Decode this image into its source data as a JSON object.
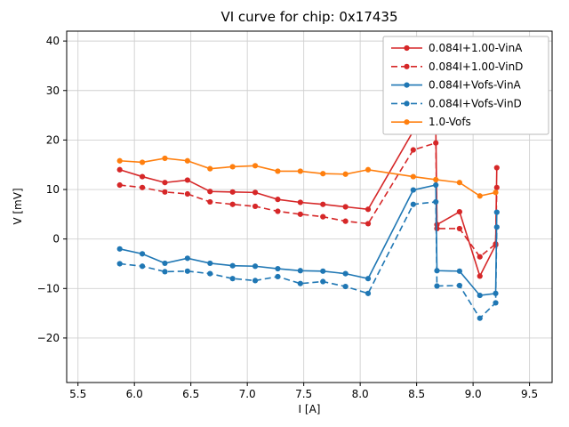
{
  "figure": {
    "title": "VI curve for chip: 0x17435",
    "background_color": "#ffffff",
    "accent_colors": {
      "red": "#d62728",
      "blue": "#1f77b4",
      "orange": "#ff7f0e"
    }
  },
  "chart_data": {
    "type": "line",
    "title": "VI curve for chip: 0x17435",
    "xlabel": "I [A]",
    "ylabel": "V [mV]",
    "xlim": [
      5.4,
      9.7
    ],
    "ylim": [
      -29,
      42
    ],
    "grid": true,
    "legend_position": "upper right",
    "xticks": {
      "values": [
        5.5,
        6.0,
        6.5,
        7.0,
        7.5,
        8.0,
        8.5,
        9.0,
        9.5
      ],
      "labels": [
        "5.5",
        "6.0",
        "6.5",
        "7.0",
        "7.5",
        "8.0",
        "8.5",
        "9.0",
        "9.5"
      ]
    },
    "yticks": {
      "values": [
        -20,
        -10,
        0,
        10,
        20,
        30,
        40
      ],
      "labels": [
        "−20",
        "−10",
        "0",
        "10",
        "20",
        "30",
        "40"
      ]
    },
    "series": [
      {
        "name": "0.084I+1.00-VinA",
        "color": "#d62728",
        "style": "solid",
        "marker": "circle",
        "x": [
          5.87,
          6.07,
          6.27,
          6.47,
          6.67,
          6.87,
          7.07,
          7.27,
          7.47,
          7.67,
          7.87,
          8.07,
          8.47,
          8.67,
          8.68,
          8.88,
          9.06,
          9.2,
          9.21
        ],
        "y": [
          14.0,
          12.6,
          11.4,
          11.9,
          9.6,
          9.5,
          9.4,
          8.0,
          7.4,
          7.0,
          6.5,
          6.0,
          21.8,
          22.3,
          2.9,
          5.5,
          -7.5,
          -1.2,
          14.4
        ]
      },
      {
        "name": "0.084I+1.00-VinD",
        "color": "#d62728",
        "style": "dashed",
        "marker": "circle",
        "x": [
          5.87,
          6.07,
          6.27,
          6.47,
          6.67,
          6.87,
          7.07,
          7.27,
          7.47,
          7.67,
          7.87,
          8.07,
          8.47,
          8.67,
          8.68,
          8.88,
          9.06,
          9.2,
          9.21
        ],
        "y": [
          10.9,
          10.4,
          9.5,
          9.1,
          7.5,
          7.0,
          6.6,
          5.6,
          5.0,
          4.5,
          3.6,
          3.1,
          18.0,
          19.4,
          2.1,
          2.1,
          -3.6,
          -1.0,
          10.4
        ]
      },
      {
        "name": "0.084I+Vofs-VinA",
        "color": "#1f77b4",
        "style": "solid",
        "marker": "circle",
        "x": [
          5.87,
          6.07,
          6.27,
          6.47,
          6.67,
          6.87,
          7.07,
          7.27,
          7.47,
          7.67,
          7.87,
          8.07,
          8.47,
          8.67,
          8.68,
          8.88,
          9.06,
          9.2,
          9.21
        ],
        "y": [
          -2.0,
          -3.0,
          -4.9,
          -3.9,
          -4.9,
          -5.4,
          -5.5,
          -6.0,
          -6.4,
          -6.5,
          -7.0,
          -8.0,
          9.9,
          10.9,
          -6.4,
          -6.5,
          -11.4,
          -11.0,
          5.4
        ]
      },
      {
        "name": "0.084I+Vofs-VinD",
        "color": "#1f77b4",
        "style": "dashed",
        "marker": "circle",
        "x": [
          5.87,
          6.07,
          6.27,
          6.47,
          6.67,
          6.87,
          7.07,
          7.27,
          7.47,
          7.67,
          7.87,
          8.07,
          8.47,
          8.67,
          8.68,
          8.88,
          9.06,
          9.2,
          9.21
        ],
        "y": [
          -5.0,
          -5.5,
          -6.6,
          -6.5,
          -7.0,
          -8.0,
          -8.4,
          -7.6,
          -9.0,
          -8.6,
          -9.6,
          -11.0,
          7.0,
          7.5,
          -9.5,
          -9.4,
          -16.0,
          -12.9,
          2.4
        ]
      },
      {
        "name": "1.0-Vofs",
        "color": "#ff7f0e",
        "style": "solid",
        "marker": "circle",
        "x": [
          5.87,
          6.07,
          6.27,
          6.47,
          6.67,
          6.87,
          7.07,
          7.27,
          7.47,
          7.67,
          7.87,
          8.07,
          8.47,
          8.67,
          8.88,
          9.06,
          9.2
        ],
        "y": [
          15.8,
          15.5,
          16.3,
          15.8,
          14.2,
          14.6,
          14.8,
          13.7,
          13.7,
          13.2,
          13.1,
          14.0,
          12.6,
          12.0,
          11.4,
          8.7,
          9.4
        ]
      }
    ]
  }
}
